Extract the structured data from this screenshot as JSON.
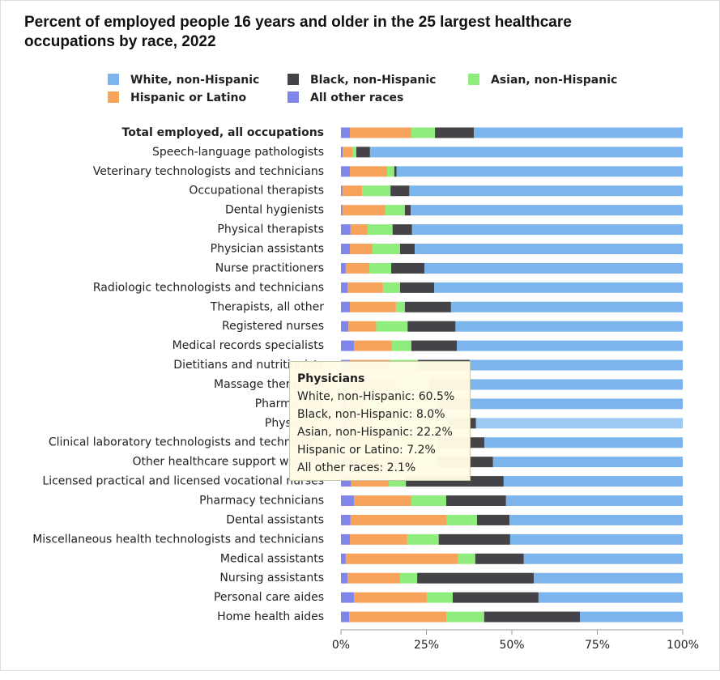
{
  "chart_data": {
    "type": "stacked_bar_horizontal",
    "title": [
      "Percent of employed people 16 years and older in the 25 largest healthcare",
      "occupations by race, 2022"
    ],
    "categories": [
      "Total employed, all occupations",
      "Speech-language pathologists",
      "Veterinary technologists and technicians",
      "Occupational therapists",
      "Dental hygienists",
      "Physical therapists",
      "Physician assistants",
      "Nurse practitioners",
      "Radiologic technologists and technicians",
      "Therapists, all other",
      "Registered nurses",
      "Medical records specialists",
      "Dietitians and nutritionists",
      "Massage therapists",
      "Pharmacists",
      "Physicians",
      "Clinical laboratory technologists and technicians",
      "Other healthcare support workers",
      "Licensed practical and licensed vocational nurses",
      "Pharmacy technicians",
      "Dental assistants",
      "Miscellaneous health technologists and technicians",
      "Medical assistants",
      "Nursing assistants",
      "Personal care aides",
      "Home health aides"
    ],
    "series": [
      {
        "name": "White, non-Hispanic",
        "color": "#7cb5ec",
        "values": [
          61.1,
          91.5,
          83.7,
          80,
          79.6,
          79.2,
          78.4,
          75.6,
          72.7,
          67.8,
          66.5,
          66.1,
          62.3,
          62.3,
          62.3,
          60.5,
          58,
          55.5,
          52.4,
          51.7,
          50.7,
          50.5,
          46.5,
          43.6,
          42.2,
          30.1
        ]
      },
      {
        "name": "Black, non-Hispanic",
        "color": "#434348",
        "values": [
          11.4,
          4,
          0.7,
          5.5,
          1.7,
          5.7,
          4.3,
          9.7,
          10,
          13.5,
          14,
          13.3,
          15.2,
          11.7,
          9.6,
          8.0,
          14,
          16.5,
          28.6,
          17.5,
          9.5,
          20.9,
          14.2,
          34.1,
          25.1,
          28
        ]
      },
      {
        "name": "Asian, non-Hispanic",
        "color": "#90ed7d",
        "values": [
          6.9,
          1,
          2.1,
          8.3,
          5.7,
          7.3,
          8.1,
          6.4,
          5,
          2.6,
          9.2,
          5.7,
          8,
          9,
          20.3,
          22.2,
          13,
          6,
          5,
          10.2,
          8.8,
          9.2,
          5,
          5,
          7.6,
          11.1
        ]
      },
      {
        "name": "Hispanic or Latino",
        "color": "#f7a35c",
        "values": [
          18,
          3,
          10.9,
          5.8,
          12.6,
          5,
          6.6,
          6.9,
          10.4,
          13.5,
          8.1,
          11.1,
          12,
          14,
          5.9,
          7.2,
          12,
          19,
          11,
          16.8,
          28.2,
          16.8,
          32.9,
          15.4,
          21.3,
          28.4
        ]
      },
      {
        "name": "All other races",
        "color": "#8085e9",
        "values": [
          2.6,
          0.5,
          2.6,
          0.4,
          0.4,
          2.8,
          2.6,
          1.4,
          1.9,
          2.6,
          2.2,
          3.8,
          2.5,
          3,
          1.9,
          2.1,
          3,
          3,
          3,
          3.8,
          2.8,
          2.6,
          1.4,
          1.9,
          3.8,
          2.4
        ]
      }
    ],
    "xlim": [
      0,
      100
    ],
    "xticks": [
      {
        "value": 0,
        "label": "0%"
      },
      {
        "value": 25,
        "label": "25%"
      },
      {
        "value": 50,
        "label": "50%"
      },
      {
        "value": 75,
        "label": "75%"
      },
      {
        "value": 100,
        "label": "100%"
      }
    ],
    "legend": "top",
    "tooltip": {
      "title": "Physicians",
      "lines": [
        "White, non-Hispanic: 60.5%",
        "Black, non-Hispanic: 8.0%",
        "Asian, non-Hispanic: 22.2%",
        "Hispanic or Latino: 7.2%",
        "All other races: 2.1%"
      ]
    }
  }
}
